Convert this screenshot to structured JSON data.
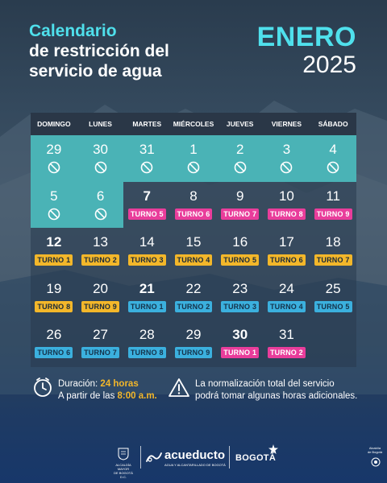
{
  "title": {
    "line1": "Calendario",
    "line2": "de restricción del",
    "line3": "servicio de agua"
  },
  "month": "ENERO",
  "year": "2025",
  "day_names": [
    "DOMINGO",
    "LUNES",
    "MARTES",
    "MIÉRCOLES",
    "JUEVES",
    "VIERNES",
    "SÁBADO"
  ],
  "weeks": [
    [
      {
        "day": "29",
        "restricted": true
      },
      {
        "day": "30",
        "restricted": true
      },
      {
        "day": "31",
        "restricted": true
      },
      {
        "day": "1",
        "restricted": true
      },
      {
        "day": "2",
        "restricted": true
      },
      {
        "day": "3",
        "restricted": true
      },
      {
        "day": "4",
        "restricted": true
      }
    ],
    [
      {
        "day": "5",
        "restricted": true
      },
      {
        "day": "6",
        "restricted": true
      },
      {
        "day": "7",
        "bold": true,
        "turno": "TURNO 5",
        "color": "pink"
      },
      {
        "day": "8",
        "turno": "TURNO 6",
        "color": "pink"
      },
      {
        "day": "9",
        "turno": "TURNO 7",
        "color": "pink"
      },
      {
        "day": "10",
        "turno": "TURNO 8",
        "color": "pink"
      },
      {
        "day": "11",
        "turno": "TURNO 9",
        "color": "pink"
      }
    ],
    [
      {
        "day": "12",
        "bold": true,
        "turno": "TURNO 1",
        "color": "yellow"
      },
      {
        "day": "13",
        "turno": "TURNO 2",
        "color": "yellow"
      },
      {
        "day": "14",
        "turno": "TURNO 3",
        "color": "yellow"
      },
      {
        "day": "15",
        "turno": "TURNO 4",
        "color": "yellow"
      },
      {
        "day": "16",
        "turno": "TURNO 5",
        "color": "yellow"
      },
      {
        "day": "17",
        "turno": "TURNO 6",
        "color": "yellow"
      },
      {
        "day": "18",
        "turno": "TURNO 7",
        "color": "yellow"
      }
    ],
    [
      {
        "day": "19",
        "turno": "TURNO 8",
        "color": "yellow"
      },
      {
        "day": "20",
        "turno": "TURNO 9",
        "color": "yellow"
      },
      {
        "day": "21",
        "bold": true,
        "turno": "TURNO 1",
        "color": "blue"
      },
      {
        "day": "22",
        "turno": "TURNO 2",
        "color": "blue"
      },
      {
        "day": "23",
        "turno": "TURNO 3",
        "color": "blue"
      },
      {
        "day": "24",
        "turno": "TURNO 4",
        "color": "blue"
      },
      {
        "day": "25",
        "turno": "TURNO 5",
        "color": "blue"
      }
    ],
    [
      {
        "day": "26",
        "turno": "TURNO 6",
        "color": "blue"
      },
      {
        "day": "27",
        "turno": "TURNO 7",
        "color": "blue"
      },
      {
        "day": "28",
        "turno": "TURNO 8",
        "color": "blue"
      },
      {
        "day": "29",
        "turno": "TURNO 9",
        "color": "blue"
      },
      {
        "day": "30",
        "bold": true,
        "turno": "TURNO 1",
        "color": "pink"
      },
      {
        "day": "31",
        "turno": "TURNO 2",
        "color": "pink"
      },
      {
        "day": ""
      }
    ]
  ],
  "info": {
    "duration_label": "Duración: ",
    "duration_value": "24 horas",
    "start_label": "A partir de las ",
    "start_value": "8:00 a.m.",
    "note_line1": "La normalización total del servicio",
    "note_line2": "podrá tomar algunas horas adicionales."
  },
  "logos": {
    "alcaldia_line1": "ALCALDÍA MAYOR",
    "alcaldia_line2": "DE BOGOTÁ D.C.",
    "acueducto": "acueducto",
    "acueducto_sub": "AGUA Y ALCANTARILLADO DE BOGOTÁ",
    "bogota": "BOGOTÁ",
    "side_line1": "Alcaldía",
    "side_line2": "de Bogotá"
  },
  "colors": {
    "accent_cyan": "#4fe0ec",
    "teal_cell": "#4ab3b6",
    "pink": "#e93d9b",
    "yellow": "#f3b72a",
    "blue": "#3bb0de"
  }
}
